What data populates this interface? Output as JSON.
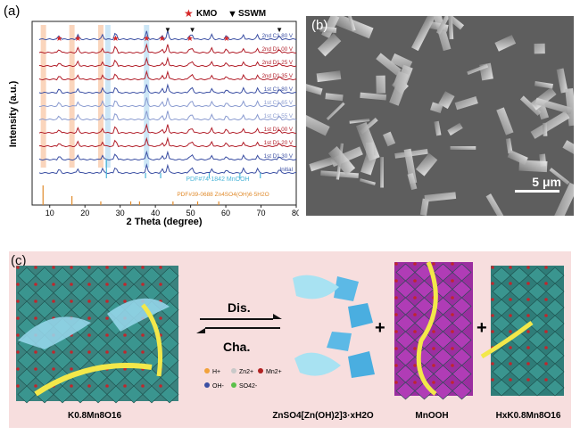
{
  "panels": {
    "a": "(a)",
    "b": "(b)",
    "c": "(c)"
  },
  "legend": {
    "kmo": "KMO",
    "sswm": "SSWM"
  },
  "colors": {
    "kmo_star": "#d62728",
    "sswm_tri": "#111111",
    "blue": "#3b4fa3",
    "red": "#b21f2a",
    "pdf_mnooh": "#4bb5d8",
    "pdf_zhs": "#e08a2a",
    "bg_c": "#f7dede"
  },
  "chart_data": {
    "type": "line",
    "xlabel": "2 Theta (degree)",
    "ylabel": "Intensity (a.u.)",
    "xlim": [
      5,
      80
    ],
    "xticks": [
      10,
      20,
      30,
      40,
      50,
      60,
      70,
      80
    ],
    "stack_labels": [
      "2nd C1.80 V",
      "2nd D1.00 V",
      "2nd D1.25 V",
      "2nd D1.35 V",
      "1st C1.80 V",
      "1st C1.65 V",
      "1st C1.55 V",
      "1st D1.00 V",
      "1st D1.20 V",
      "1st D1.30 V",
      "Initial"
    ],
    "reference_labels": {
      "mnooh": "PDF#74-1842 MnOOH",
      "zhs": "PDF#39-0688 Zn4SO4(OH)6·5H2O"
    },
    "kmo_peaks_2theta": [
      12.7,
      18.0,
      28.7,
      37.5,
      41.9,
      49.8,
      60.2
    ],
    "sswm_peaks_2theta": [
      43.5,
      50.5,
      75.2
    ],
    "highlight_bands_2theta": [
      8.2,
      16.3,
      24.5,
      26.5,
      37.5
    ]
  },
  "scale_bar": "5 μm",
  "reaction": {
    "forward": "Dis.",
    "backward": "Cha.",
    "plus1": "+",
    "plus2": "+"
  },
  "ion_legend": {
    "h": "H+",
    "zn": "Zn2+",
    "mn": "Mn2+",
    "oh": "OH-",
    "so4": "SO42-"
  },
  "compounds": {
    "left": "K0.8Mn8O16",
    "middle": "ZnSO4[Zn(OH)2]3·xH2O",
    "mnooh": "MnOOH",
    "right": "HxK0.8Mn8O16"
  }
}
